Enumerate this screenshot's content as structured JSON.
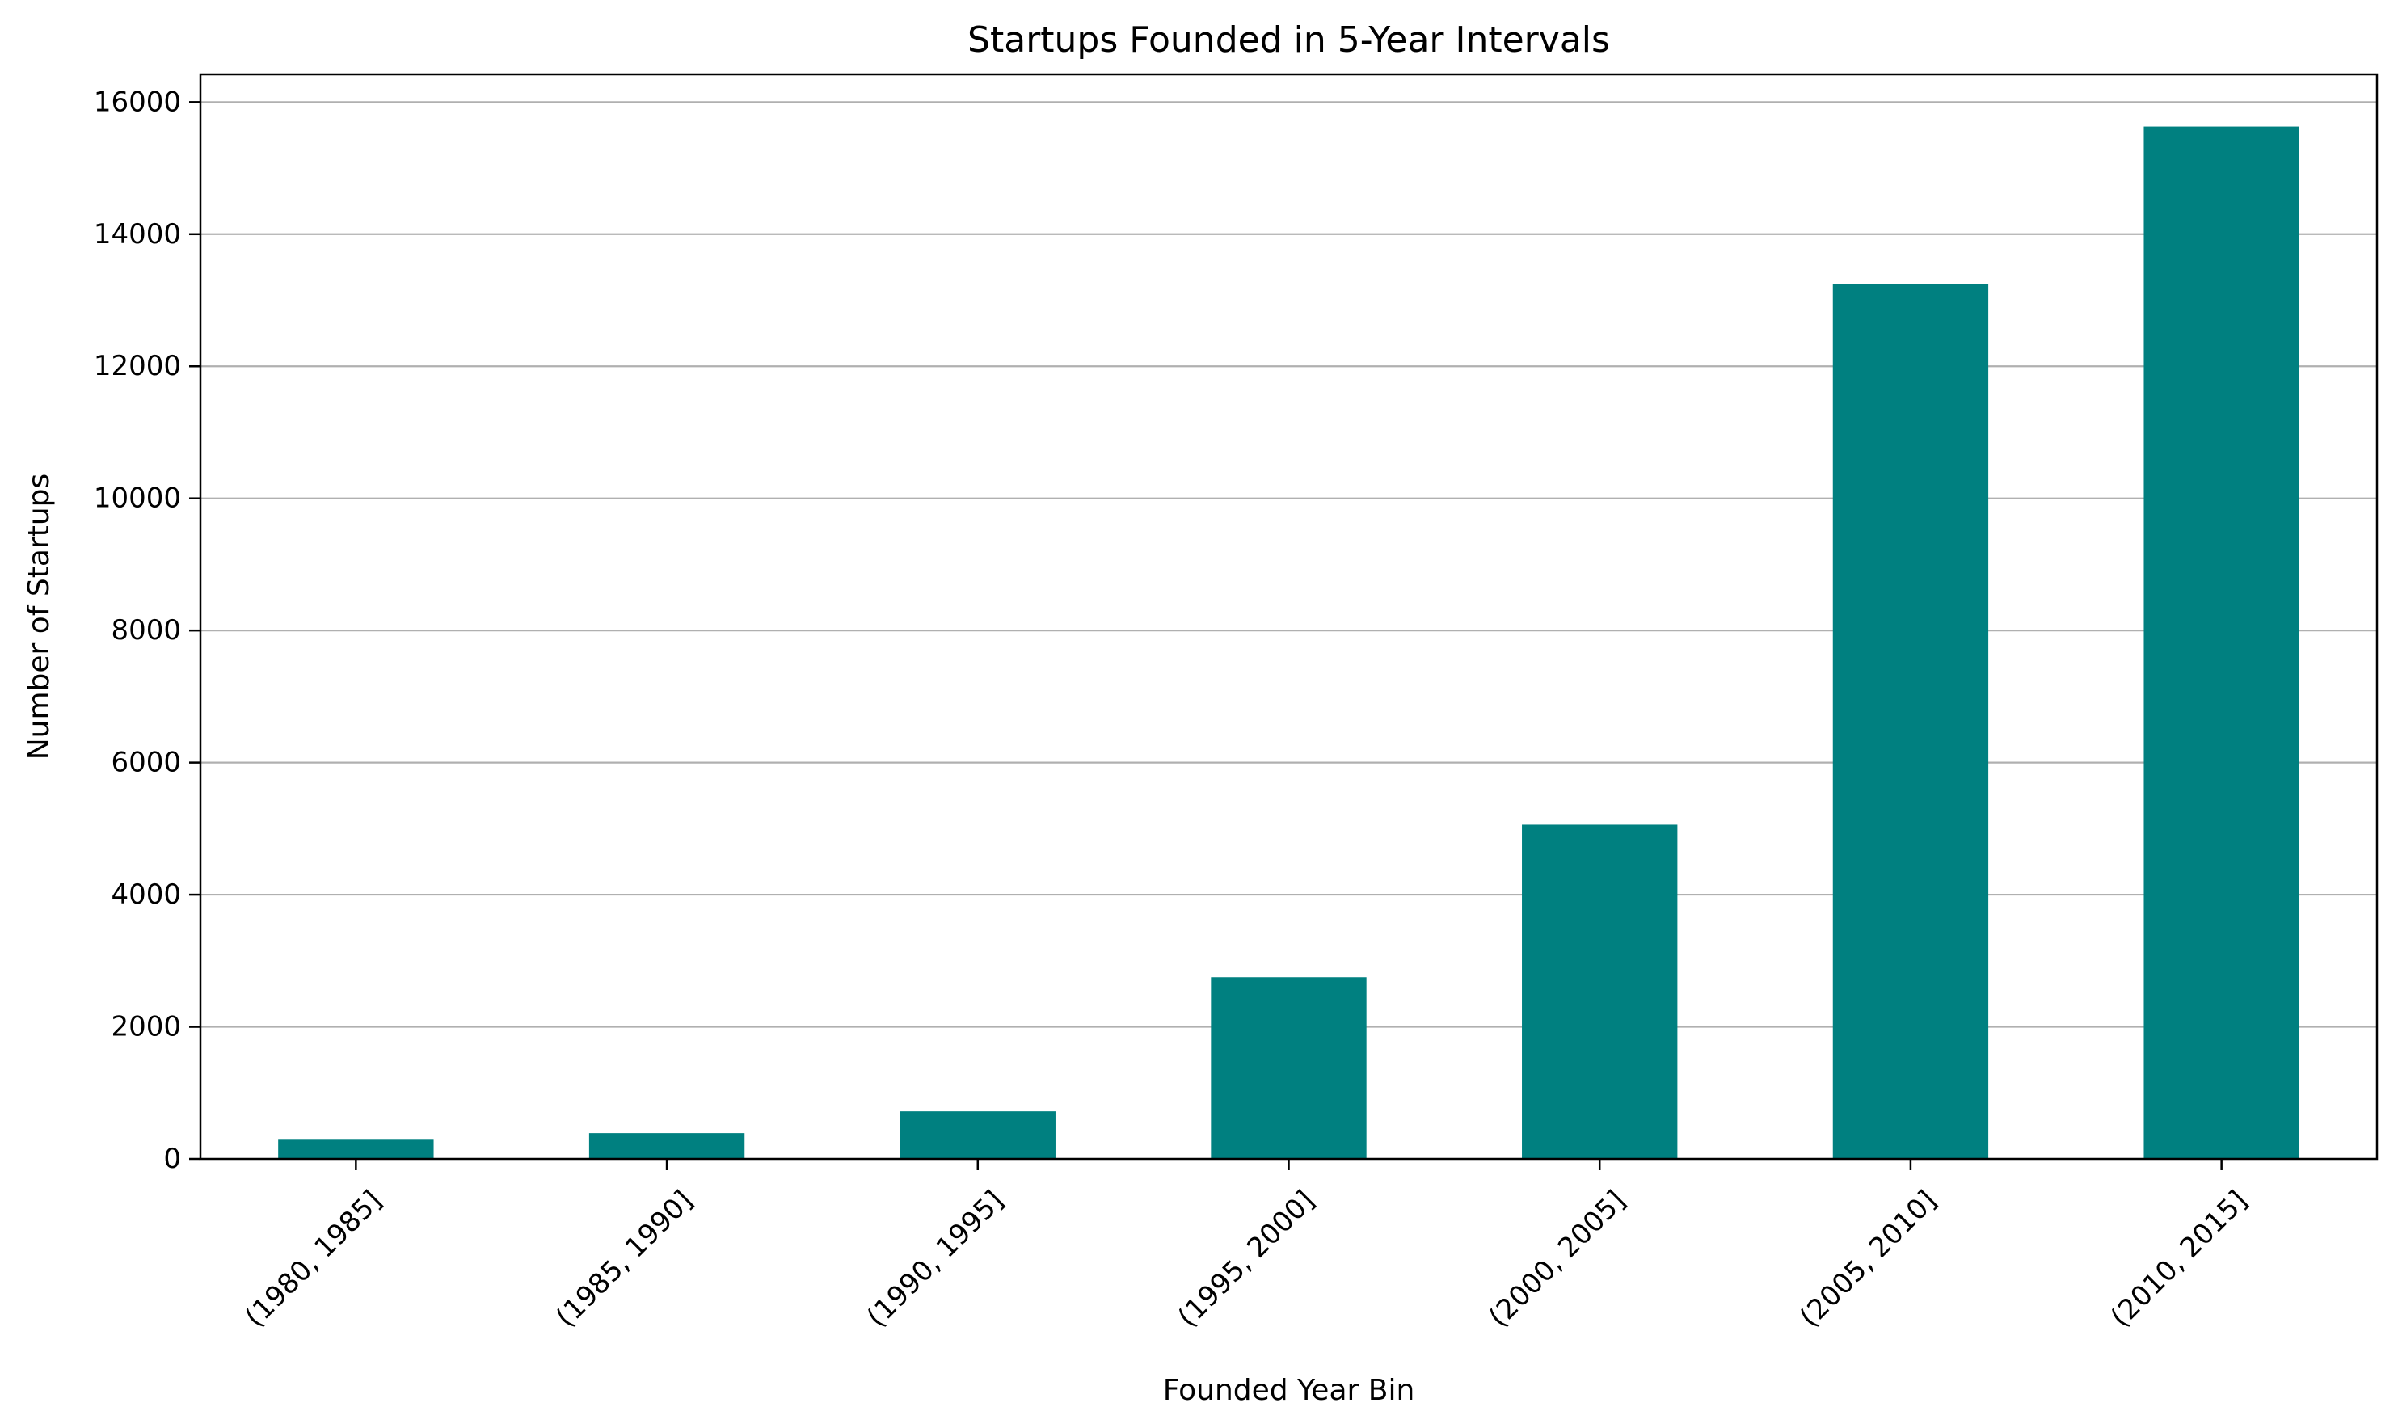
{
  "chart_data": {
    "type": "bar",
    "title": "Startups Founded in 5-Year Intervals",
    "xlabel": "Founded Year Bin",
    "ylabel": "Number of Startups",
    "categories": [
      "(1980, 1985]",
      "(1985, 1990]",
      "(1990, 1995]",
      "(1995, 2000]",
      "(2000, 2005]",
      "(2005, 2010]",
      "(2010, 2015]"
    ],
    "values": [
      290,
      390,
      720,
      2750,
      5060,
      13240,
      15630
    ],
    "ylim": [
      0,
      16420
    ],
    "yticks": [
      0,
      2000,
      4000,
      6000,
      8000,
      10000,
      12000,
      14000,
      16000
    ],
    "ytick_labels": [
      "0",
      "2000",
      "4000",
      "6000",
      "8000",
      "10000",
      "12000",
      "14000",
      "16000"
    ],
    "grid": "y-axis only",
    "legend": "none",
    "bar_color": "#008080",
    "grid_color": "#b0b0b0",
    "xtick_rotation": "45 degrees"
  }
}
